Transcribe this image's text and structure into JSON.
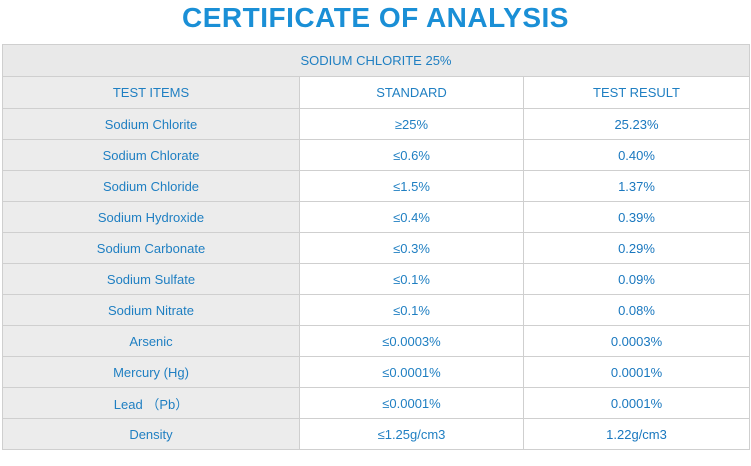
{
  "title": "CERTIFICATE OF ANALYSIS",
  "product": "SODIUM CHLORITE 25%",
  "headers": [
    "TEST ITEMS",
    "STANDARD",
    "TEST RESULT"
  ],
  "rows": [
    {
      "item": "Sodium Chlorite",
      "standard": "≥25%",
      "result": "25.23%"
    },
    {
      "item": "Sodium Chlorate",
      "standard": "≤0.6%",
      "result": "0.40%"
    },
    {
      "item": "Sodium Chloride",
      "standard": "≤1.5%",
      "result": "1.37%"
    },
    {
      "item": "Sodium Hydroxide",
      "standard": "≤0.4%",
      "result": "0.39%"
    },
    {
      "item": "Sodium Carbonate",
      "standard": "≤0.3%",
      "result": "0.29%"
    },
    {
      "item": "Sodium Sulfate",
      "standard": "≤0.1%",
      "result": "0.09%"
    },
    {
      "item": "Sodium Nitrate",
      "standard": "≤0.1%",
      "result": "0.08%"
    },
    {
      "item": "Arsenic",
      "standard": "≤0.0003%",
      "result": "0.0003%"
    },
    {
      "item": "Mercury (Hg)",
      "standard": "≤0.0001%",
      "result": "0.0001%"
    },
    {
      "item": "Lead （Pb）",
      "standard": "≤0.0001%",
      "result": "0.0001%"
    },
    {
      "item": "Density",
      "standard": "≤1.25g/cm3",
      "result": "1.22g/cm3"
    }
  ],
  "colors": {
    "accent": "#1a8fd6",
    "text": "#1f7fc2",
    "first_column_bg": "#ececec",
    "border": "#cfcfcf"
  }
}
